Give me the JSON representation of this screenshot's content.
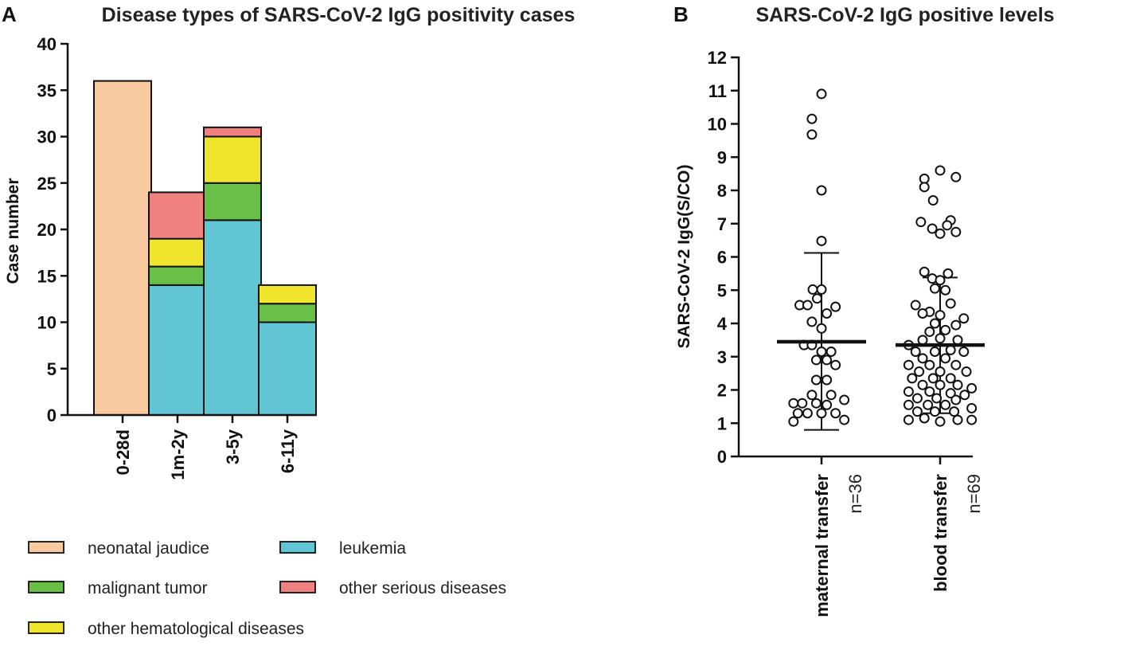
{
  "chart_data": [
    {
      "panel": "A",
      "type": "bar",
      "stacked": true,
      "title": "Disease types of SARS-CoV-2 IgG positivity cases",
      "xlabel": "",
      "ylabel": "Case number",
      "ylim": [
        0,
        40
      ],
      "yticks": [
        "0",
        "5",
        "10",
        "15",
        "20",
        "25",
        "30",
        "35",
        "40"
      ],
      "categories": [
        "0-28d",
        "1m-2y",
        "3-5y",
        "6-11y"
      ],
      "series": [
        {
          "name": "neonatal jaudice",
          "color": "#f9c99f",
          "values": [
            36,
            0,
            0,
            0
          ]
        },
        {
          "name": "leukemia",
          "color": "#62c5d3",
          "values": [
            0,
            14,
            21,
            10
          ]
        },
        {
          "name": "malignant tumor",
          "color": "#6abf47",
          "values": [
            0,
            2,
            4,
            2
          ]
        },
        {
          "name": "other hematological diseases",
          "color": "#f0e52c",
          "values": [
            0,
            3,
            5,
            2
          ]
        },
        {
          "name": "other serious diseases",
          "color": "#ef8181",
          "values": [
            0,
            5,
            1,
            0
          ]
        }
      ],
      "legend": [
        "neonatal jaudice",
        "leukemia",
        "malignant tumor",
        "other serious diseases",
        "other hematological diseases"
      ]
    },
    {
      "panel": "B",
      "type": "scatter",
      "title": "SARS-CoV-2 IgG positive levels",
      "xlabel": "",
      "ylabel": "SARS-CoV-2 IgG(S/CO)",
      "ylim": [
        0,
        12
      ],
      "yticks": [
        "0",
        "1",
        "2",
        "3",
        "4",
        "5",
        "6",
        "7",
        "8",
        "9",
        "10",
        "11",
        "12"
      ],
      "groups": [
        {
          "name": "maternal transfer",
          "n_label": "n=36",
          "mean": 3.45,
          "sd_low": 0.8,
          "sd_high": 6.12,
          "points": [
            {
              "offset": 0.0,
              "value": 10.9
            },
            {
              "offset": -0.55,
              "value": 10.15
            },
            {
              "offset": -0.55,
              "value": 9.68
            },
            {
              "offset": 0.0,
              "value": 8.0
            },
            {
              "offset": 0.0,
              "value": 6.48
            },
            {
              "offset": -0.5,
              "value": 5.02
            },
            {
              "offset": 0.0,
              "value": 5.02
            },
            {
              "offset": -0.25,
              "value": 4.75
            },
            {
              "offset": -1.25,
              "value": 4.55
            },
            {
              "offset": -0.8,
              "value": 4.55
            },
            {
              "offset": 0.8,
              "value": 4.5
            },
            {
              "offset": 0.3,
              "value": 4.3
            },
            {
              "offset": -0.55,
              "value": 4.05
            },
            {
              "offset": 0.0,
              "value": 3.85
            },
            {
              "offset": -1.0,
              "value": 3.35
            },
            {
              "offset": -0.55,
              "value": 3.35
            },
            {
              "offset": 0.0,
              "value": 3.15
            },
            {
              "offset": 0.55,
              "value": 3.15
            },
            {
              "offset": -0.3,
              "value": 2.9
            },
            {
              "offset": 0.3,
              "value": 2.9
            },
            {
              "offset": 0.8,
              "value": 2.75
            },
            {
              "offset": -0.3,
              "value": 2.3
            },
            {
              "offset": 0.3,
              "value": 2.3
            },
            {
              "offset": -0.55,
              "value": 1.85
            },
            {
              "offset": 0.55,
              "value": 1.85
            },
            {
              "offset": -1.6,
              "value": 1.6
            },
            {
              "offset": -1.1,
              "value": 1.6
            },
            {
              "offset": -0.3,
              "value": 1.6
            },
            {
              "offset": 0.3,
              "value": 1.55
            },
            {
              "offset": 1.3,
              "value": 1.7
            },
            {
              "offset": -1.35,
              "value": 1.3
            },
            {
              "offset": -0.8,
              "value": 1.3
            },
            {
              "offset": 0.0,
              "value": 1.3
            },
            {
              "offset": 0.8,
              "value": 1.3
            },
            {
              "offset": -1.6,
              "value": 1.05
            },
            {
              "offset": 1.3,
              "value": 1.1
            }
          ]
        },
        {
          "name": "blood transfer",
          "n_label": "n=69",
          "mean": 3.35,
          "sd_low": 1.3,
          "sd_high": 5.38,
          "points": [
            {
              "offset": 0.0,
              "value": 8.6
            },
            {
              "offset": -0.9,
              "value": 8.35
            },
            {
              "offset": 0.9,
              "value": 8.4
            },
            {
              "offset": -0.9,
              "value": 8.1
            },
            {
              "offset": -0.4,
              "value": 7.7
            },
            {
              "offset": -1.1,
              "value": 7.05
            },
            {
              "offset": 0.6,
              "value": 7.1
            },
            {
              "offset": 0.4,
              "value": 6.95
            },
            {
              "offset": -0.45,
              "value": 6.85
            },
            {
              "offset": 0.0,
              "value": 6.7
            },
            {
              "offset": 0.9,
              "value": 6.75
            },
            {
              "offset": -0.9,
              "value": 5.55
            },
            {
              "offset": 0.45,
              "value": 5.5
            },
            {
              "offset": -0.45,
              "value": 5.35
            },
            {
              "offset": 0.0,
              "value": 5.3
            },
            {
              "offset": -0.3,
              "value": 5.05
            },
            {
              "offset": 0.3,
              "value": 5.0
            },
            {
              "offset": -1.4,
              "value": 4.55
            },
            {
              "offset": 0.6,
              "value": 4.6
            },
            {
              "offset": -0.6,
              "value": 4.35
            },
            {
              "offset": -1.0,
              "value": 4.3
            },
            {
              "offset": 0.0,
              "value": 4.25
            },
            {
              "offset": 1.35,
              "value": 4.15
            },
            {
              "offset": -0.3,
              "value": 4.0
            },
            {
              "offset": 0.9,
              "value": 3.95
            },
            {
              "offset": -0.6,
              "value": 3.75
            },
            {
              "offset": 0.3,
              "value": 3.8
            },
            {
              "offset": -1.0,
              "value": 3.5
            },
            {
              "offset": -1.8,
              "value": 3.35
            },
            {
              "offset": 0.0,
              "value": 3.55
            },
            {
              "offset": 1.0,
              "value": 3.5
            },
            {
              "offset": -1.4,
              "value": 3.15
            },
            {
              "offset": -0.3,
              "value": 3.15
            },
            {
              "offset": 0.6,
              "value": 3.2
            },
            {
              "offset": 1.35,
              "value": 3.15
            },
            {
              "offset": -1.0,
              "value": 2.95
            },
            {
              "offset": 0.3,
              "value": 2.95
            },
            {
              "offset": -1.8,
              "value": 2.75
            },
            {
              "offset": -0.6,
              "value": 2.75
            },
            {
              "offset": 0.9,
              "value": 2.75
            },
            {
              "offset": -1.2,
              "value": 2.55
            },
            {
              "offset": 0.0,
              "value": 2.55
            },
            {
              "offset": 1.5,
              "value": 2.55
            },
            {
              "offset": -1.6,
              "value": 2.35
            },
            {
              "offset": -0.4,
              "value": 2.35
            },
            {
              "offset": 0.6,
              "value": 2.35
            },
            {
              "offset": -1.0,
              "value": 2.15
            },
            {
              "offset": 0.0,
              "value": 2.15
            },
            {
              "offset": 1.0,
              "value": 2.15
            },
            {
              "offset": 1.8,
              "value": 2.05
            },
            {
              "offset": -1.8,
              "value": 1.95
            },
            {
              "offset": -0.6,
              "value": 1.95
            },
            {
              "offset": 0.6,
              "value": 1.9
            },
            {
              "offset": 1.4,
              "value": 1.85
            },
            {
              "offset": -1.3,
              "value": 1.75
            },
            {
              "offset": -0.2,
              "value": 1.75
            },
            {
              "offset": 0.9,
              "value": 1.7
            },
            {
              "offset": -1.8,
              "value": 1.55
            },
            {
              "offset": -0.7,
              "value": 1.55
            },
            {
              "offset": 0.3,
              "value": 1.55
            },
            {
              "offset": 1.8,
              "value": 1.45
            },
            {
              "offset": -1.3,
              "value": 1.35
            },
            {
              "offset": -0.3,
              "value": 1.35
            },
            {
              "offset": 0.8,
              "value": 1.35
            },
            {
              "offset": -1.8,
              "value": 1.1
            },
            {
              "offset": -0.9,
              "value": 1.15
            },
            {
              "offset": 0.0,
              "value": 1.05
            },
            {
              "offset": 1.0,
              "value": 1.1
            },
            {
              "offset": 1.8,
              "value": 1.1
            }
          ]
        }
      ]
    }
  ]
}
